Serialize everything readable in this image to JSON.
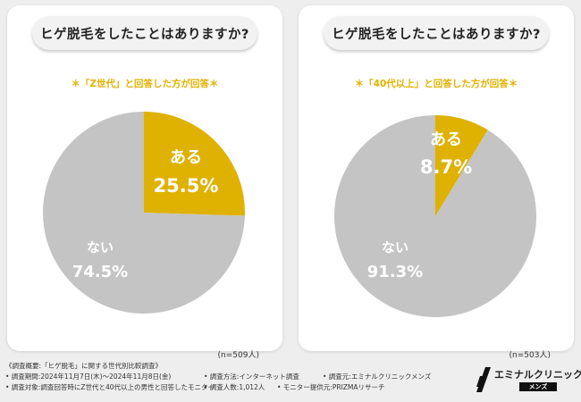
{
  "chart_data": [
    {
      "type": "pie",
      "title": "ヒゲ脱毛をしたことはありますか?",
      "subtitle": "＊「Z世代」と回答した方が回答＊",
      "n_label": "(n=509人)",
      "slices": [
        {
          "label": "ある",
          "value": 25.5,
          "value_text": "25.5%",
          "color": "#dfb100"
        },
        {
          "label": "ない",
          "value": 74.5,
          "value_text": "74.5%",
          "color": "#c4c4c4"
        }
      ]
    },
    {
      "type": "pie",
      "title": "ヒゲ脱毛をしたことはありますか?",
      "subtitle": "＊「40代以上」と回答した方が回答＊",
      "n_label": "(n=503人)",
      "slices": [
        {
          "label": "ある",
          "value": 8.7,
          "value_text": "8.7%",
          "color": "#dfb100"
        },
        {
          "label": "ない",
          "value": 91.3,
          "value_text": "91.3%",
          "color": "#c4c4c4"
        }
      ]
    }
  ],
  "footer": {
    "heading": "《調査概要:「ヒゲ脱毛」に関する世代別比較調査》",
    "period": "• 調査期間:2024年11月7日(木)〜2024年11月8日(金)",
    "method": "• 調査方法:インターネット調査",
    "organizer": "• 調査元:エミナルクリニックメンズ",
    "target": "• 調査対象:調査回答時にZ世代と40代以上の男性と回答したモニター",
    "respondents": "• 調査人数:1,012人",
    "provider": "• モニター提供元:PRIZMAリサーチ"
  },
  "logo": {
    "name": "エミナルクリニック",
    "sub": "メンズ"
  }
}
